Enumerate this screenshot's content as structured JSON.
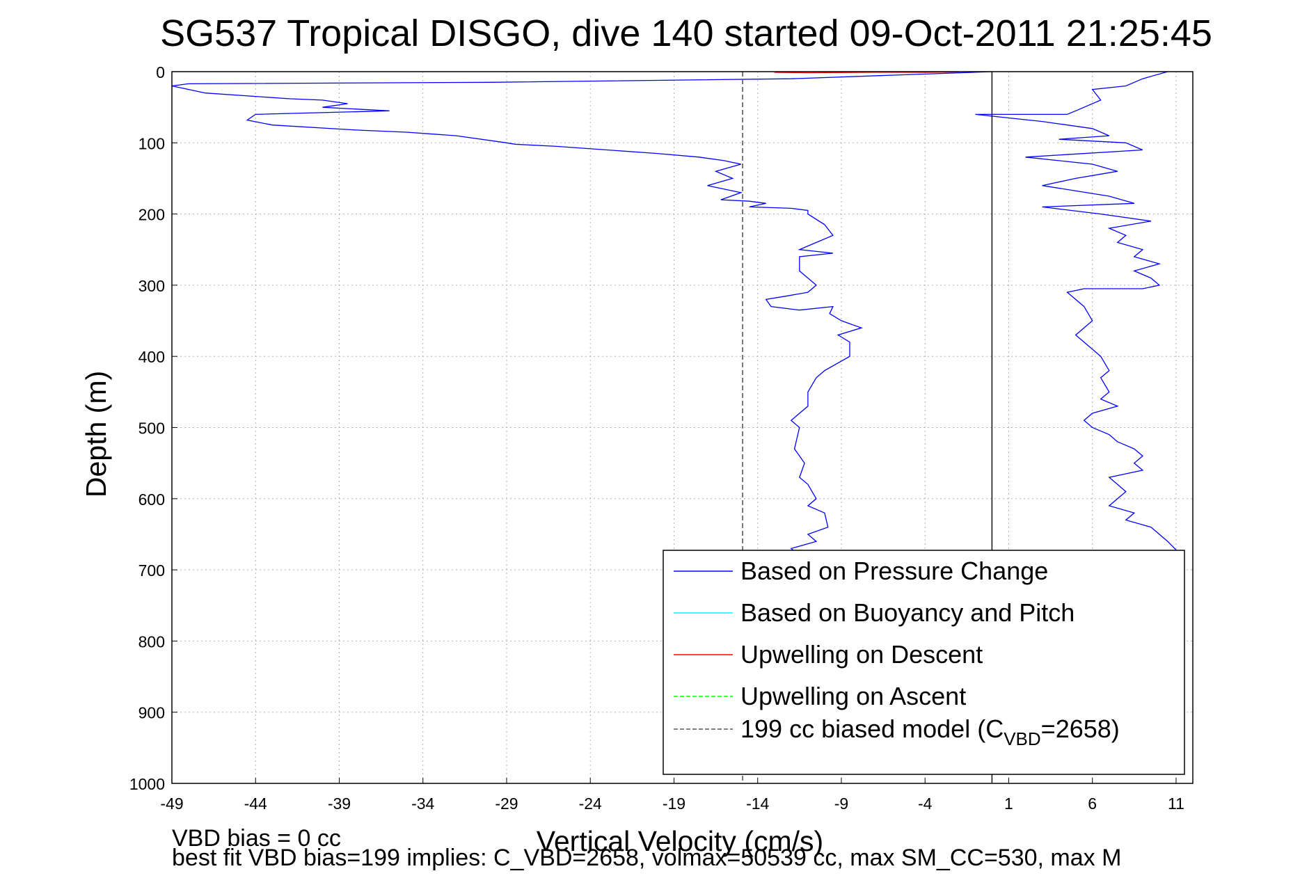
{
  "chart_data": {
    "type": "line",
    "title": "SG537 Tropical DISGO, dive 140 started 09-Oct-2011 21:25:45",
    "xlabel": "Vertical Velocity (cm/s)",
    "ylabel": "Depth (m)",
    "xlim": [
      -49,
      12
    ],
    "ylim": [
      0,
      1000
    ],
    "y_reversed": true,
    "grid": true,
    "xticks": [
      -49,
      -44,
      -39,
      -34,
      -29,
      -24,
      -19,
      -14,
      -9,
      -4,
      1,
      6,
      11
    ],
    "yticks": [
      0,
      100,
      200,
      300,
      400,
      500,
      600,
      700,
      800,
      900,
      1000
    ],
    "legend_position": "bottom-right",
    "legend": [
      {
        "label": "Based on Pressure Change",
        "color": "#0000ff",
        "style": "solid"
      },
      {
        "label": "Based on Buoyancy and Pitch",
        "color": "#00ffff",
        "style": "solid"
      },
      {
        "label": "Upwelling on Descent",
        "color": "#ff0000",
        "style": "solid"
      },
      {
        "label": "Upwelling on Ascent",
        "color": "#00ff00",
        "style": "dashed"
      },
      {
        "label": "199 cc biased model (C",
        "label_sub": "VBD",
        "label_tail": "=2658)",
        "color": "#555555",
        "style": "dashed"
      }
    ],
    "series": [
      {
        "name": "Based on Pressure Change",
        "color": "#0000ff",
        "x": [
          0.0,
          -12,
          -30,
          -48,
          -49,
          -47,
          -42,
          -40,
          -38.5,
          -40,
          -36,
          -44,
          -44.5,
          -43,
          -38,
          -35,
          -32,
          -29,
          -28.5,
          -26,
          -23,
          -20,
          -17.5,
          -16,
          -15,
          -16.5,
          -15.5,
          -17,
          -15,
          -16.2,
          -14.5,
          -13.5,
          -14.5,
          -12,
          -11,
          -11,
          -10,
          -9.5,
          -10.5,
          -11.5,
          -9.5,
          -11.5,
          -11.5,
          -10.5,
          -11,
          -12.2,
          -13.5,
          -13.2,
          -11.5,
          -9.5,
          -9.7,
          -9,
          -7.8,
          -9.2,
          -8.5,
          -8.5,
          -10,
          -10.5,
          -11,
          -11,
          -12,
          -11.5,
          -11.8,
          -11.2,
          -11.5,
          -11,
          -10.5,
          -11,
          -10,
          -9.8,
          -11,
          -10.5,
          -12,
          -11.5,
          -11.8,
          -11
        ],
        "y": [
          0,
          10,
          15,
          17,
          20,
          30,
          38,
          40,
          45,
          50,
          55,
          60,
          68,
          75,
          82,
          85,
          90,
          100,
          102,
          105,
          110,
          115,
          120,
          125,
          130,
          140,
          150,
          160,
          170,
          180,
          182,
          185,
          190,
          192,
          195,
          200,
          215,
          230,
          240,
          250,
          255,
          260,
          280,
          300,
          310,
          315,
          320,
          330,
          335,
          330,
          340,
          350,
          360,
          370,
          380,
          400,
          420,
          430,
          450,
          470,
          490,
          500,
          530,
          550,
          570,
          580,
          600,
          610,
          620,
          640,
          650,
          660,
          670,
          680,
          690,
          700
        ]
      },
      {
        "name": "Based on Pressure Change (ascent)",
        "color": "#0000ff",
        "x": [
          10.5,
          9,
          8,
          6,
          6.5,
          5,
          4.5,
          -1,
          3,
          6,
          7,
          4,
          8,
          9,
          2,
          6,
          7.5,
          5,
          3,
          7,
          8.5,
          3,
          6.5,
          9.5,
          7,
          8,
          7.5,
          9,
          8.5,
          10,
          8.5,
          9.5,
          10,
          9,
          8.5,
          5.5,
          4.5,
          5.5,
          6,
          5,
          6,
          6.5,
          7,
          6.5,
          7,
          6.5,
          7.5,
          6,
          5.5,
          6,
          7,
          7.5,
          8.5,
          9,
          8.5,
          9,
          7,
          7.5,
          8,
          7.5,
          7,
          8.5,
          8,
          9.5,
          10.5,
          11
        ],
        "y": [
          0,
          10,
          20,
          25,
          40,
          55,
          60,
          60,
          70,
          80,
          90,
          95,
          100,
          110,
          120,
          130,
          140,
          150,
          160,
          175,
          185,
          190,
          200,
          210,
          220,
          230,
          240,
          250,
          260,
          270,
          280,
          290,
          300,
          305,
          305,
          305,
          310,
          330,
          350,
          370,
          390,
          400,
          420,
          430,
          450,
          460,
          470,
          480,
          490,
          500,
          510,
          520,
          530,
          540,
          550,
          560,
          570,
          580,
          590,
          600,
          610,
          620,
          630,
          640,
          660,
          672
        ]
      },
      {
        "name": "Upwelling on Descent",
        "color": "#ff0000",
        "x": [
          -13,
          -11,
          -9,
          -7,
          -4,
          -2
        ],
        "y": [
          1,
          1.5,
          1.2,
          0.8,
          1,
          0.5
        ]
      },
      {
        "name": "199 cc biased model",
        "color": "#555555",
        "x": [
          -14.9,
          -14.9
        ],
        "y": [
          0,
          1000
        ]
      },
      {
        "name": "zero line",
        "color": "#000000",
        "x": [
          0,
          0
        ],
        "y": [
          0,
          1000
        ]
      }
    ]
  },
  "footer": {
    "line1": "VBD bias = 0 cc",
    "line2": "best fit VBD bias=199 implies: C_VBD=2658, volmax=50539 cc, max SM_CC=530, max M"
  }
}
